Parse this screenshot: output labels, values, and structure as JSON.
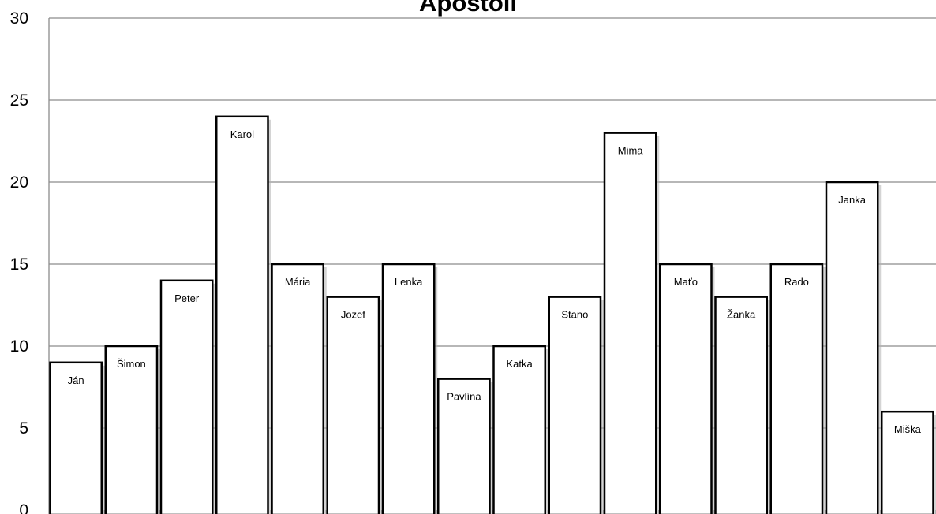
{
  "chart_data": {
    "type": "bar",
    "title": "Apoštoli",
    "xlabel": "",
    "ylabel": "",
    "ylim": [
      0,
      30
    ],
    "yticks": [
      0,
      5,
      10,
      15,
      20,
      25,
      30
    ],
    "grid": true,
    "legend": "none",
    "categories": [
      "Ján",
      "Šimon",
      "Peter",
      "Karol",
      "Mária",
      "Jozef",
      "Lenka",
      "Pavlína",
      "Katka",
      "Stano",
      "Mima",
      "Maťo",
      "Žanka",
      "Rado",
      "Janka",
      "Miška"
    ],
    "values": [
      9,
      10,
      14,
      24,
      15,
      13,
      15,
      8,
      10,
      13,
      23,
      15,
      13,
      15,
      20,
      6
    ],
    "colors": {
      "bar_fill": "#ffffff",
      "bar_stroke": "#000000",
      "grid": "#8c8c8c",
      "shadow": "#b0b0b0"
    }
  }
}
